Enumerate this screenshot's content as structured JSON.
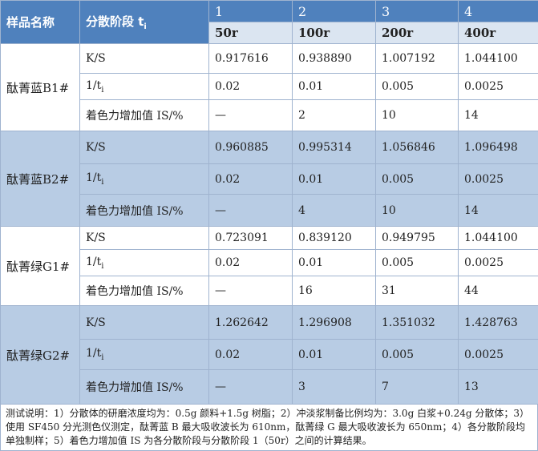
{
  "header": {
    "col_sample": "样品名称",
    "col_stage": "分散阶段 t",
    "col_stage_sub": "i",
    "stages": [
      "1",
      "2",
      "3",
      "4"
    ],
    "revs": [
      "50r",
      "100r",
      "200r",
      "400r"
    ]
  },
  "samples": [
    {
      "name": "酞菁蓝B1#",
      "rows": [
        {
          "label": "K/S",
          "label_sub": "",
          "values": [
            "0.917616",
            "0.938890",
            "1.007192",
            "1.044100"
          ]
        },
        {
          "label": "1/t",
          "label_sub": "i",
          "values": [
            "0.02",
            "0.01",
            "0.005",
            "0.0025"
          ]
        },
        {
          "label": "着色力增加值 IS/%",
          "label_sub": "",
          "values": [
            "—",
            "2",
            "10",
            "14"
          ]
        }
      ]
    },
    {
      "name": "酞菁蓝B2#",
      "rows": [
        {
          "label": "K/S",
          "label_sub": "",
          "values": [
            "0.960885",
            "0.995314",
            "1.056846",
            "1.096498"
          ]
        },
        {
          "label": "1/t",
          "label_sub": "i",
          "values": [
            "0.02",
            "0.01",
            "0.005",
            "0.0025"
          ]
        },
        {
          "label": "着色力增加值 IS/%",
          "label_sub": "",
          "values": [
            "—",
            "4",
            "10",
            "14"
          ]
        }
      ]
    },
    {
      "name": "酞菁绿G1#",
      "rows": [
        {
          "label": "K/S",
          "label_sub": "",
          "values": [
            "0.723091",
            "0.839120",
            "0.949795",
            "1.044100"
          ]
        },
        {
          "label": "1/t",
          "label_sub": "i",
          "values": [
            "0.02",
            "0.01",
            "0.005",
            "0.0025"
          ]
        },
        {
          "label": "着色力增加值 IS/%",
          "label_sub": "",
          "values": [
            "—",
            "16",
            "31",
            "44"
          ]
        }
      ]
    },
    {
      "name": "酞菁绿G2#",
      "rows": [
        {
          "label": "K/S",
          "label_sub": "",
          "values": [
            "1.262642",
            "1.296908",
            "1.351032",
            "1.428763"
          ]
        },
        {
          "label": "1/t",
          "label_sub": "i",
          "values": [
            "0.02",
            "0.01",
            "0.005",
            "0.0025"
          ]
        },
        {
          "label": "着色力增加值 IS/%",
          "label_sub": "",
          "values": [
            "—",
            "3",
            "7",
            "13"
          ]
        }
      ]
    }
  ],
  "note": "测试说明：1）分散体的研磨浓度均为：0.5g 颜料+1.5g 树脂；2）冲淡浆制备比例均为：3.0g 白浆+0.24g 分散体；3）使用 SF450 分光测色仪测定，酞菁蓝 B 最大吸收波长为 610nm，酞菁绿 G 最大吸收波长为 650nm；4）各分散阶段均单独制样；5）着色力增加值 IS 为各分散阶段与分散阶段 1（50r）之间的计算结果。"
}
